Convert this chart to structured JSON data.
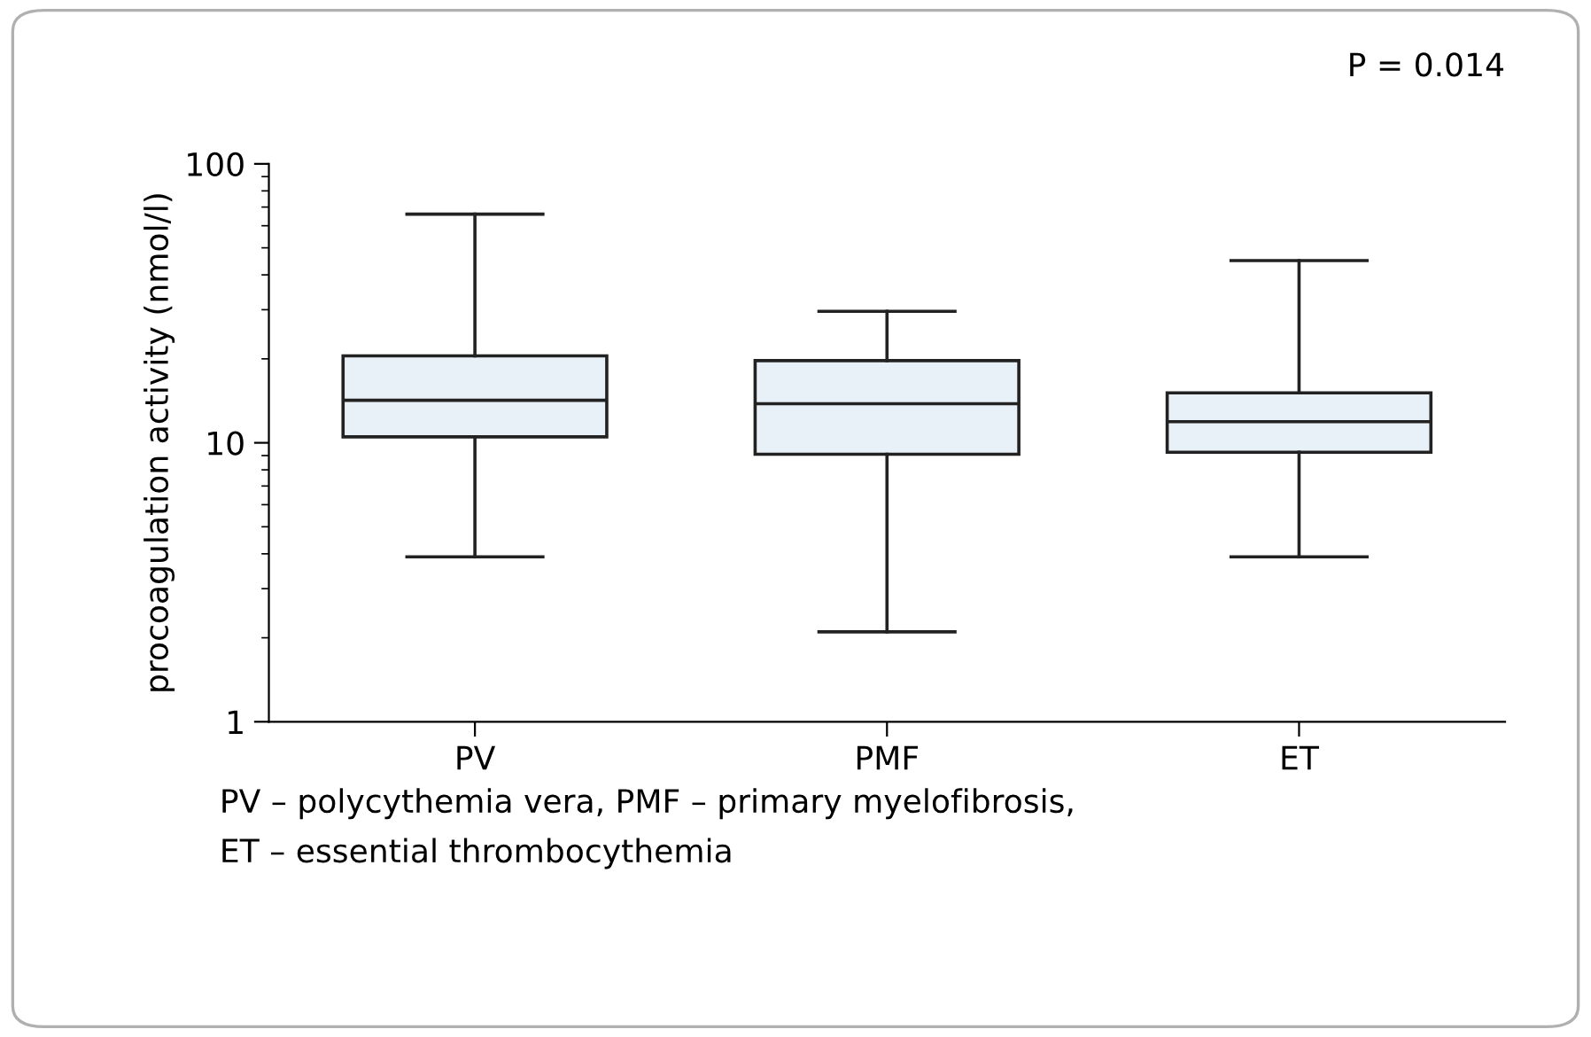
{
  "chart_data": {
    "type": "box",
    "ylabel": "procoagulation activity (nmol/l)",
    "categories": [
      "PV",
      "PMF",
      "ET"
    ],
    "boxes": [
      {
        "low": 3.9,
        "q1": 10.5,
        "median": 14.2,
        "q3": 20.5,
        "high": 66
      },
      {
        "low": 2.1,
        "q1": 9.1,
        "median": 13.8,
        "q3": 19.7,
        "high": 29.6
      },
      {
        "low": 3.9,
        "q1": 9.25,
        "median": 11.9,
        "q3": 15.1,
        "high": 45
      }
    ],
    "color": "#e8f0f8",
    "log": "y",
    "ylim": [
      1,
      100
    ],
    "yticks": [
      1,
      10,
      100
    ],
    "grid": false,
    "legend": false,
    "annotations": [
      "P = 0.014",
      "PV – polycythemia vera, PMF – primary myelofibrosis,",
      "ET – essential thrombocythemia"
    ]
  }
}
